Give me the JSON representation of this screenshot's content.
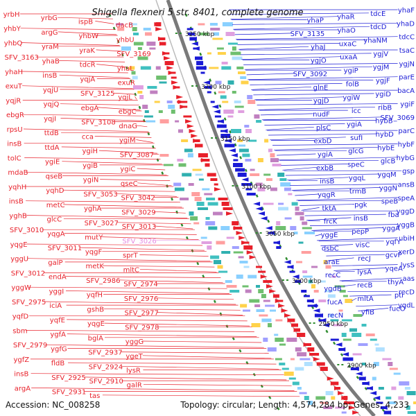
{
  "title": "Shigella flexneri 5 str. 8401, complete genome",
  "footer": {
    "accession": "Accession: NC_008258",
    "topology": "Topology: circular; Length: 4,574,284 bp; Genes: 4,233"
  },
  "kbp_labels": [
    "3250 kbp",
    "3200 kbp",
    "3150 kbp",
    "3100 kbp",
    "3050 kbp",
    "3000 kbp",
    "2950 kbp",
    "2900 kbp"
  ],
  "colors": {
    "left_gene": "#e8202a",
    "right_gene": "#1a1ad6",
    "highlight": "#e58ae0",
    "backbone": "#8a8a8a"
  },
  "genes_left": [
    "yrbH",
    "yrbG",
    "ispB",
    "dacB",
    "yhbY",
    "argG",
    "yhbW",
    "yhbU",
    "yhbQ",
    "yraM",
    "yraK",
    "SFV_3169",
    "SFV_3163",
    "yhaB",
    "tdcR",
    "yhaL",
    "yhaH",
    "insB",
    "yqjA",
    "exuR",
    "exuT",
    "yqjU",
    "SFV_3125",
    "yqjL",
    "yqjR",
    "yqjQ",
    "ebgA",
    "ebgC",
    "ebgR",
    "yqjI",
    "SFV_3108",
    "dnaG",
    "rpsU",
    "ttdB",
    "cca",
    "ygiM",
    "insB",
    "ttdA",
    "ygiH",
    "SFV_3087",
    "tolC",
    "ygiE",
    "ygiB",
    "ygiC",
    "mdaB",
    "qseB",
    "ygiN",
    "qseC",
    "yqhH",
    "yqhD",
    "SFV_3053",
    "SFV_3042",
    "insB",
    "metC",
    "yghA",
    "SFV_3029",
    "yghB",
    "glcC",
    "SFV_3027",
    "SFV_3013",
    "SFV_3010",
    "yqgA",
    "mutY",
    "SFV_3026",
    "yqgE",
    "SFV_3011",
    "yqgF",
    "sprT",
    "yggU",
    "galP",
    "metK",
    "mltC",
    "SFV_3012",
    "endA",
    "SFV_2986",
    "SFV_2974",
    "yggW",
    "yggI",
    "yqfH",
    "SFV_2976",
    "SFV_2975",
    "iciA",
    "gshB",
    "SFV_2977",
    "yqfD",
    "yqfE",
    "yqgE",
    "SFV_2978",
    "sbm",
    "ygfA",
    "bglA",
    "yggG",
    "SFV_2979",
    "ygfG",
    "SFV_2937",
    "ygeT",
    "ygfZ",
    "fldB",
    "SFV_2924",
    "lysR",
    "insB",
    "SFV_2925",
    "SFV_2910",
    "galR",
    "argA",
    "SFV_2931",
    "tas"
  ],
  "genes_right": [
    "yhaF",
    "tdcE",
    "yhaR",
    "yhaP",
    "yhaD",
    "tdcD",
    "yhaO",
    "SFV_3135",
    "tdcC",
    "yhaNM",
    "uxaC",
    "yhaJ",
    "tsaC",
    "ygjV",
    "uxaA",
    "ygjO",
    "ygjN",
    "ygjM",
    "ygiP",
    "SFV_3092",
    "parE",
    "ygjF",
    "folB",
    "glnE",
    "bacA",
    "ygiD",
    "ygiW",
    "ygjD",
    "ygiF",
    "ribB",
    "icc",
    "nudF",
    "SFV_3069",
    "hybB",
    "ygiA",
    "plsC",
    "parC",
    "hybD",
    "sufI",
    "exbD",
    "hybF",
    "hybE",
    "glcG",
    "ygiA",
    "hybG",
    "glcB",
    "speC",
    "exbB",
    "gsp",
    "ygqM",
    "ygqL",
    "insB",
    "ansB",
    "yggN",
    "trmB",
    "yqgR",
    "speA",
    "speB",
    "pgk",
    "tktA",
    "yggD",
    "fba",
    "insB",
    "frcK",
    "yggB",
    "yggA",
    "pepP",
    "yggE",
    "ubiH",
    "yqfY",
    "visC",
    "dsbC",
    "xerD",
    "gcvP",
    "recJ",
    "araE",
    "lysS",
    "yqeA",
    "lysA",
    "recC",
    "aas",
    "thyA",
    "recB",
    "ygdB",
    "recD",
    "ptr",
    "mltA",
    "fucA",
    "yqdL",
    "fucO",
    "yfiB",
    "recN"
  ],
  "highlight_gene": "SFV_3026"
}
